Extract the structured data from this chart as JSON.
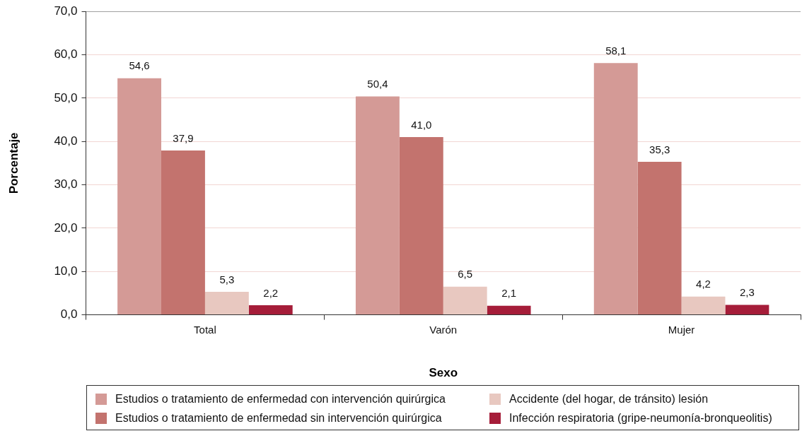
{
  "chart_data": {
    "type": "bar",
    "categories": [
      "Total",
      "Varón",
      "Mujer"
    ],
    "xlabel": "Sexo",
    "ylabel": "Porcentaje",
    "ylim": [
      0,
      70
    ],
    "yticks": [
      {
        "value": 0,
        "label": "0,0"
      },
      {
        "value": 10,
        "label": "10,0"
      },
      {
        "value": 20,
        "label": "20,0"
      },
      {
        "value": 30,
        "label": "30,0"
      },
      {
        "value": 40,
        "label": "40,0"
      },
      {
        "value": 50,
        "label": "50,0"
      },
      {
        "value": 60,
        "label": "60,0"
      },
      {
        "value": 70,
        "label": "70,0"
      }
    ],
    "grid": "y",
    "legend": "bottom",
    "series": [
      {
        "name": "Estudios o tratamiento de enfermedad con intervención quirúrgica",
        "color": "#d49a96",
        "values": [
          54.6,
          50.4,
          58.1
        ],
        "value_labels": [
          "54,6",
          "50,4",
          "58,1"
        ]
      },
      {
        "name": "Estudios o tratamiento de enfermedad sin intervención quirúrgica",
        "color": "#c3736e",
        "values": [
          37.9,
          41.0,
          35.3
        ],
        "value_labels": [
          "37,9",
          "41,0",
          "35,3"
        ]
      },
      {
        "name": "Accidente (del hogar, de tránsito) lesión",
        "color": "#e8c8c0",
        "values": [
          5.3,
          6.5,
          4.2
        ],
        "value_labels": [
          "5,3",
          "6,5",
          "4,2"
        ]
      },
      {
        "name": "Infección respiratoria (gripe-neumonía-bronqueolitis)",
        "color": "#a51d39",
        "values": [
          2.2,
          2.1,
          2.3
        ],
        "value_labels": [
          "2,2",
          "2,1",
          "2,3"
        ]
      }
    ]
  }
}
